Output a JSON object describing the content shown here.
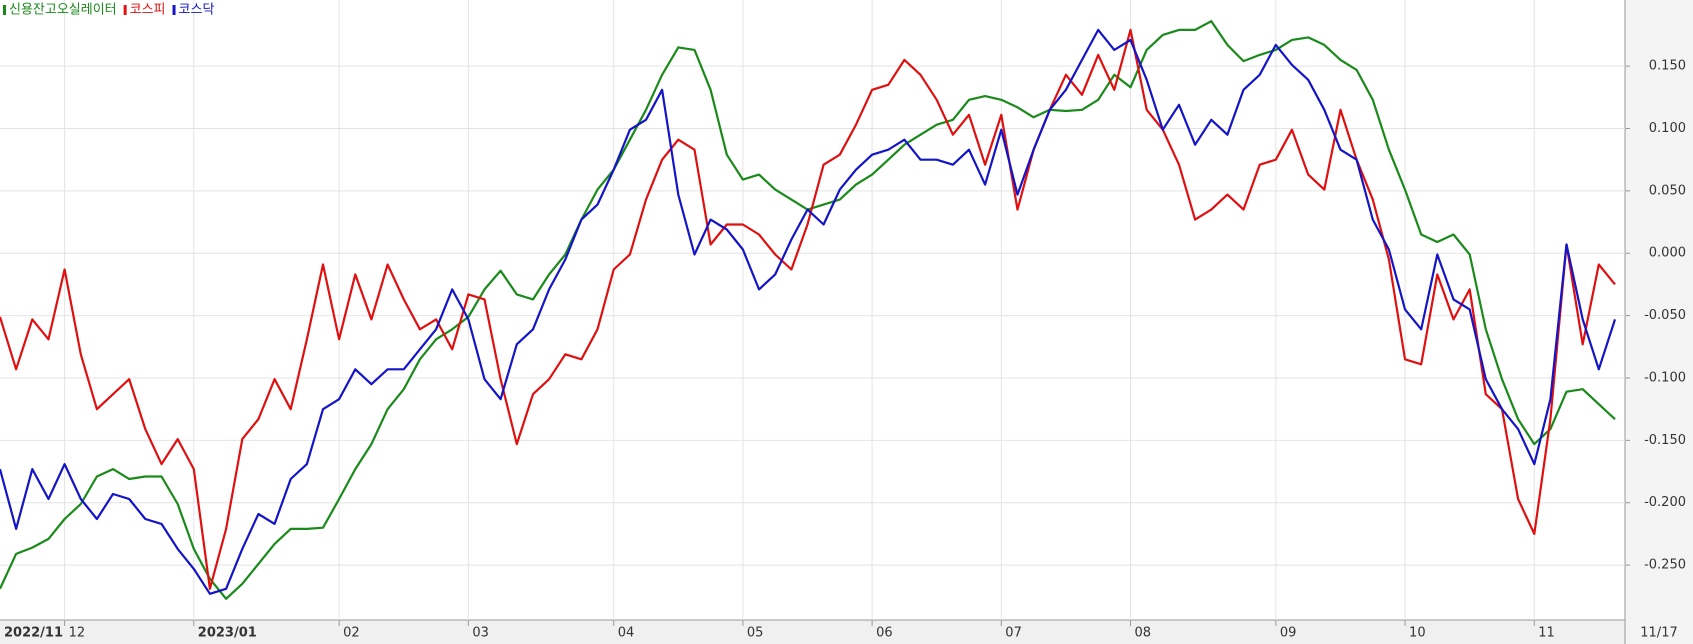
{
  "chart_data": {
    "type": "line",
    "categories": [
      "2022/11",
      null,
      null,
      null,
      "12",
      null,
      null,
      null,
      null,
      null,
      null,
      null,
      "2023/01",
      null,
      null,
      null,
      null,
      null,
      null,
      null,
      null,
      "02",
      null,
      null,
      null,
      null,
      null,
      null,
      null,
      "03",
      null,
      null,
      null,
      null,
      null,
      null,
      null,
      null,
      "04",
      null,
      null,
      null,
      null,
      null,
      null,
      null,
      "05",
      null,
      null,
      null,
      null,
      null,
      null,
      null,
      "06",
      null,
      null,
      null,
      null,
      null,
      null,
      null,
      "07",
      null,
      null,
      null,
      null,
      null,
      null,
      null,
      "08",
      null,
      null,
      null,
      null,
      null,
      null,
      null,
      null,
      "09",
      null,
      null,
      null,
      null,
      null,
      null,
      null,
      "10",
      null,
      null,
      null,
      null,
      null,
      null,
      null,
      "11",
      null,
      null,
      null,
      null,
      "11/17"
    ],
    "series": [
      {
        "name": "신용잔고오실레이터",
        "color": "#1a8a1a",
        "values": [
          -0.269,
          -0.241,
          -0.236,
          -0.229,
          -0.213,
          -0.201,
          -0.179,
          -0.173,
          -0.181,
          -0.179,
          -0.179,
          -0.201,
          -0.237,
          -0.261,
          -0.277,
          -0.265,
          -0.249,
          -0.233,
          -0.221,
          -0.221,
          -0.22,
          -0.197,
          -0.173,
          -0.153,
          -0.125,
          -0.109,
          -0.085,
          -0.069,
          -0.061,
          -0.051,
          -0.029,
          -0.014,
          -0.033,
          -0.037,
          -0.017,
          -0.001,
          0.027,
          0.051,
          0.067,
          0.091,
          0.115,
          0.143,
          0.165,
          0.163,
          0.131,
          0.079,
          0.059,
          0.063,
          0.051,
          0.043,
          0.035,
          0.039,
          0.043,
          0.055,
          0.063,
          0.075,
          0.087,
          0.095,
          0.103,
          0.107,
          0.123,
          0.126,
          0.123,
          0.117,
          0.109,
          0.115,
          0.114,
          0.115,
          0.123,
          0.143,
          0.133,
          0.163,
          0.175,
          0.179,
          0.179,
          0.186,
          0.167,
          0.154,
          0.159,
          0.163,
          0.171,
          0.173,
          0.167,
          0.155,
          0.147,
          0.123,
          0.083,
          0.051,
          0.015,
          0.009,
          0.015,
          -0.001,
          -0.061,
          -0.101,
          -0.133,
          -0.153,
          -0.141,
          -0.111,
          -0.109,
          -0.121,
          -0.133
        ]
      },
      {
        "name": "코스피",
        "color": "#e01010",
        "values": [
          -0.051,
          -0.093,
          -0.053,
          -0.069,
          -0.013,
          -0.081,
          -0.125,
          -0.113,
          -0.101,
          -0.141,
          -0.169,
          -0.149,
          -0.173,
          -0.269,
          -0.221,
          -0.149,
          -0.133,
          -0.101,
          -0.125,
          -0.069,
          -0.009,
          -0.069,
          -0.017,
          -0.053,
          -0.009,
          -0.037,
          -0.061,
          -0.053,
          -0.077,
          -0.033,
          -0.037,
          -0.101,
          -0.153,
          -0.113,
          -0.101,
          -0.081,
          -0.085,
          -0.061,
          -0.013,
          -0.001,
          0.043,
          0.075,
          0.091,
          0.083,
          0.007,
          0.023,
          0.023,
          0.015,
          -0.001,
          -0.013,
          0.023,
          0.071,
          0.079,
          0.103,
          0.131,
          0.135,
          0.155,
          0.143,
          0.123,
          0.095,
          0.111,
          0.071,
          0.111,
          0.035,
          0.083,
          0.115,
          0.143,
          0.127,
          0.159,
          0.131,
          0.179,
          0.115,
          0.099,
          0.071,
          0.027,
          0.035,
          0.047,
          0.035,
          0.071,
          0.075,
          0.099,
          0.063,
          0.051,
          0.115,
          0.075,
          0.043,
          -0.005,
          -0.085,
          -0.089,
          -0.017,
          -0.053,
          -0.029,
          -0.113,
          -0.125,
          -0.197,
          -0.225,
          -0.133,
          0.007,
          -0.073,
          -0.009,
          -0.025
        ]
      },
      {
        "name": "코스닥",
        "color": "#1414c8",
        "values": [
          -0.173,
          -0.221,
          -0.173,
          -0.197,
          -0.169,
          -0.197,
          -0.213,
          -0.193,
          -0.197,
          -0.213,
          -0.217,
          -0.237,
          -0.253,
          -0.273,
          -0.269,
          -0.237,
          -0.209,
          -0.217,
          -0.181,
          -0.169,
          -0.125,
          -0.117,
          -0.093,
          -0.105,
          -0.093,
          -0.093,
          -0.077,
          -0.061,
          -0.029,
          -0.053,
          -0.101,
          -0.117,
          -0.073,
          -0.061,
          -0.029,
          -0.005,
          0.027,
          0.039,
          0.067,
          0.099,
          0.107,
          0.131,
          0.047,
          -0.001,
          0.027,
          0.019,
          0.003,
          -0.029,
          -0.017,
          0.011,
          0.035,
          0.023,
          0.051,
          0.067,
          0.079,
          0.083,
          0.091,
          0.075,
          0.075,
          0.071,
          0.083,
          0.055,
          0.099,
          0.047,
          0.083,
          0.115,
          0.131,
          0.155,
          0.179,
          0.163,
          0.171,
          0.139,
          0.099,
          0.119,
          0.087,
          0.107,
          0.095,
          0.131,
          0.143,
          0.167,
          0.151,
          0.139,
          0.115,
          0.083,
          0.075,
          0.027,
          0.003,
          -0.045,
          -0.061,
          -0.001,
          -0.037,
          -0.045,
          -0.101,
          -0.125,
          -0.141,
          -0.169,
          -0.117,
          0.007,
          -0.053,
          -0.093,
          -0.053
        ]
      }
    ],
    "ylim": [
      -0.294,
      0.203
    ],
    "yticks": [
      {
        "value": -0.25,
        "label": "-0.250"
      },
      {
        "value": -0.2,
        "label": "-0.200"
      },
      {
        "value": -0.15,
        "label": "-0.150"
      },
      {
        "value": -0.1,
        "label": "-0.100"
      },
      {
        "value": -0.05,
        "label": "-0.050"
      },
      {
        "value": 0,
        "label": "0.000"
      },
      {
        "value": 0.05,
        "label": "0.050"
      },
      {
        "value": 0.1,
        "label": "0.100"
      },
      {
        "value": 0.15,
        "label": "0.150"
      }
    ],
    "grid": true
  }
}
